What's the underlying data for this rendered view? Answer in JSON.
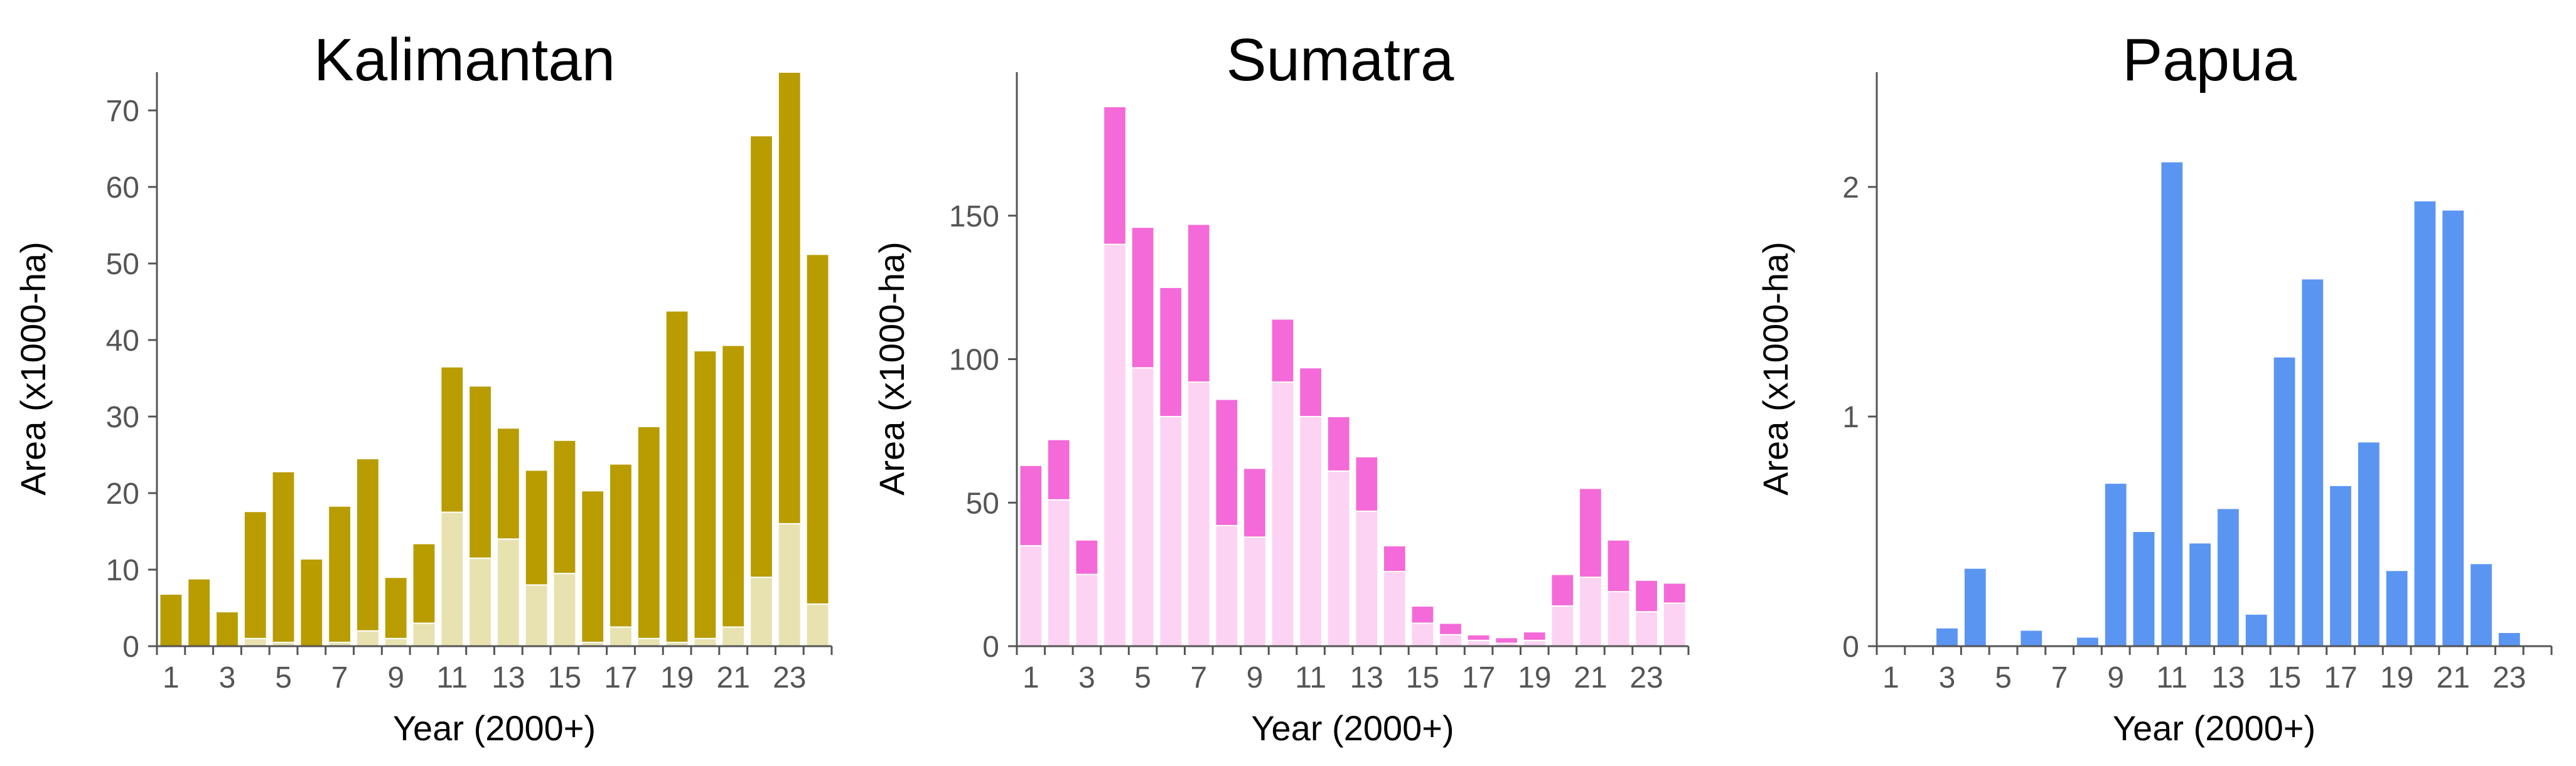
{
  "colors": {
    "kalimantan_total": "#B89C00",
    "kalimantan_lower": "#E8E2B0",
    "sumatra_total": "#F36AD8",
    "sumatra_lower": "#FDD3F3",
    "papua_total": "#5B95F2",
    "axis": "#555555"
  },
  "chart_data": [
    {
      "id": "kalimantan",
      "type": "bar",
      "stacked": true,
      "title": "Kalimantan",
      "xlabel": "Year (2000+)",
      "ylabel": "Area (x1000-ha)",
      "x": [
        1,
        2,
        3,
        4,
        5,
        6,
        7,
        8,
        9,
        10,
        11,
        12,
        13,
        14,
        15,
        16,
        17,
        18,
        19,
        20,
        21,
        22,
        23,
        24
      ],
      "xticks": [
        "1",
        "3",
        "5",
        "7",
        "9",
        "11",
        "13",
        "15",
        "17",
        "19",
        "21",
        "23"
      ],
      "yticks": [
        "0",
        "10",
        "20",
        "30",
        "40",
        "50",
        "60",
        "70"
      ],
      "ylim": [
        0,
        75
      ],
      "series": [
        {
          "values": [
            0,
            0,
            0,
            1,
            0.5,
            0,
            0.5,
            2,
            1,
            3,
            17.5,
            11.5,
            14,
            8,
            9.5,
            0.5,
            2.5,
            1,
            0.5,
            1,
            2.5,
            9,
            16,
            5.5
          ],
          "color": "#E8E2B0"
        },
        {
          "values": [
            6.8,
            8.8,
            4.5,
            16.6,
            22.3,
            11.4,
            17.8,
            22.5,
            8,
            10.4,
            19,
            22.5,
            14.5,
            15,
            17.4,
            19.8,
            21.3,
            27.7,
            43.3,
            37.6,
            36.8,
            57.7,
            59,
            45.7
          ],
          "color": "#B89C00"
        }
      ]
    },
    {
      "id": "sumatra",
      "type": "bar",
      "stacked": true,
      "title": "Sumatra",
      "xlabel": "Year (2000+)",
      "ylabel": "Area (x1000-ha)",
      "x": [
        1,
        2,
        3,
        4,
        5,
        6,
        7,
        8,
        9,
        10,
        11,
        12,
        13,
        14,
        15,
        16,
        17,
        18,
        19,
        20,
        21,
        22,
        23,
        24
      ],
      "xticks": [
        "1",
        "3",
        "5",
        "7",
        "9",
        "11",
        "13",
        "15",
        "17",
        "19",
        "21",
        "23"
      ],
      "yticks": [
        "0",
        "50",
        "100",
        "150"
      ],
      "ylim": [
        0,
        200
      ],
      "series": [
        {
          "values": [
            35,
            51,
            25,
            140,
            97,
            80,
            92,
            42,
            38,
            92,
            80,
            61,
            47,
            26,
            8,
            4,
            2,
            1,
            2,
            14,
            24,
            19,
            12,
            15
          ],
          "color": "#FDD3F3"
        },
        {
          "values": [
            28,
            21,
            12,
            48,
            49,
            45,
            55,
            44,
            24,
            22,
            17,
            19,
            19,
            9,
            6,
            4,
            2,
            2,
            3,
            11,
            31,
            18,
            11,
            7
          ],
          "color": "#F36AD8"
        }
      ]
    },
    {
      "id": "papua",
      "type": "bar",
      "title": "Papua",
      "xlabel": "Year (2000+)",
      "ylabel": "Area (x1000-ha)",
      "x": [
        1,
        2,
        3,
        4,
        5,
        6,
        7,
        8,
        9,
        10,
        11,
        12,
        13,
        14,
        15,
        16,
        17,
        18,
        19,
        20,
        21,
        22,
        23,
        24
      ],
      "xticks": [
        "1",
        "3",
        "5",
        "7",
        "9",
        "11",
        "13",
        "15",
        "17",
        "19",
        "21",
        "23"
      ],
      "yticks": [
        "0",
        "1",
        "2"
      ],
      "ylim": [
        0,
        2.5
      ],
      "series": [
        {
          "values": [
            0,
            0,
            0.08,
            0.34,
            0,
            0.07,
            0,
            0.04,
            0.71,
            0.5,
            2.11,
            0.45,
            0.6,
            0.14,
            1.26,
            1.6,
            0.7,
            0.89,
            0.33,
            1.94,
            1.9,
            0.36,
            0.06,
            0
          ],
          "color": "#5B95F2"
        }
      ]
    }
  ]
}
